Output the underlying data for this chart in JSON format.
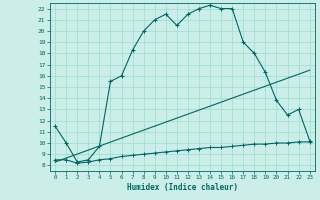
{
  "xlabel": "Humidex (Indice chaleur)",
  "bg_color": "#cceee8",
  "line_color": "#006666",
  "grid_color": "#99ddcc",
  "xlim": [
    -0.5,
    23.5
  ],
  "ylim": [
    7.5,
    22.5
  ],
  "xticks": [
    0,
    1,
    2,
    3,
    4,
    5,
    6,
    7,
    8,
    9,
    10,
    11,
    12,
    13,
    14,
    15,
    16,
    17,
    18,
    19,
    20,
    21,
    22,
    23
  ],
  "yticks": [
    8,
    9,
    10,
    11,
    12,
    13,
    14,
    15,
    16,
    17,
    18,
    19,
    20,
    21,
    22
  ],
  "line1_x": [
    0,
    1,
    2,
    3,
    4,
    5,
    6,
    7,
    8,
    9,
    10,
    11,
    12,
    13,
    14,
    15,
    16,
    17,
    18,
    19,
    20,
    21,
    22,
    23
  ],
  "line1_y": [
    11.5,
    10.0,
    8.3,
    8.5,
    9.7,
    15.5,
    16.0,
    18.3,
    20.0,
    21.0,
    21.5,
    20.5,
    21.5,
    22.0,
    22.3,
    22.0,
    22.0,
    19.0,
    18.0,
    16.3,
    13.8,
    12.5,
    13.0,
    10.2
  ],
  "line2_x": [
    0,
    1,
    2,
    3,
    4,
    5,
    6,
    7,
    8,
    9,
    10,
    11,
    12,
    13,
    14,
    15,
    16,
    17,
    18,
    19,
    20,
    21,
    22,
    23
  ],
  "line2_y": [
    8.5,
    8.5,
    8.2,
    8.3,
    8.5,
    8.6,
    8.8,
    8.9,
    9.0,
    9.1,
    9.2,
    9.3,
    9.4,
    9.5,
    9.6,
    9.6,
    9.7,
    9.8,
    9.9,
    9.9,
    10.0,
    10.0,
    10.1,
    10.1
  ],
  "line3_x": [
    0,
    23
  ],
  "line3_y": [
    8.3,
    16.5
  ]
}
